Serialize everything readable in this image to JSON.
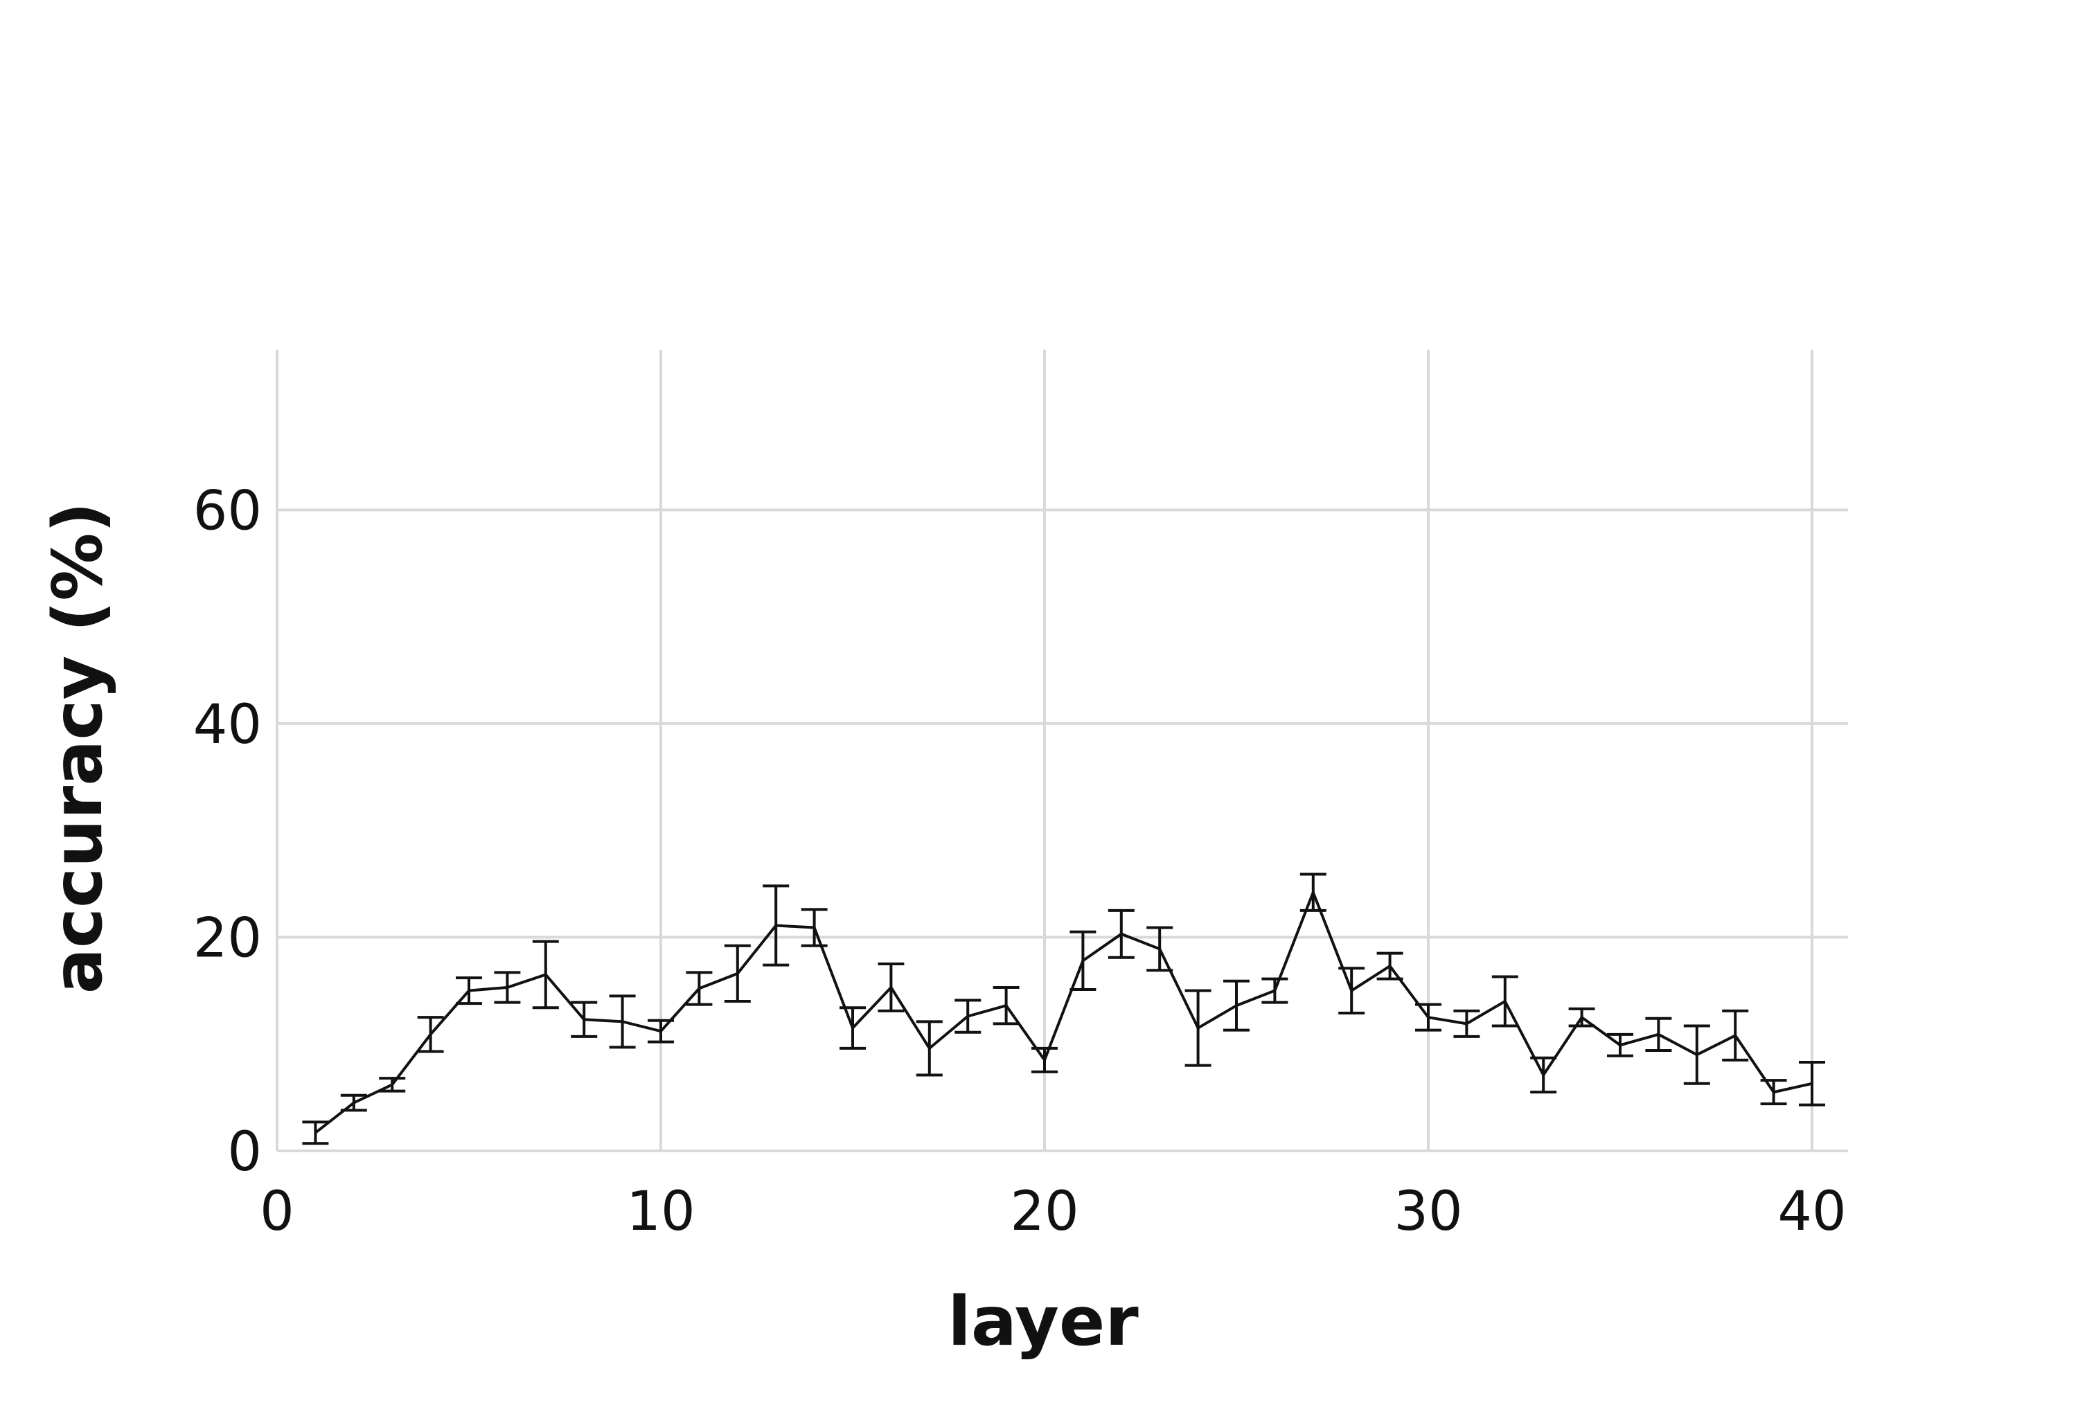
{
  "chart_data": {
    "type": "line",
    "xlabel": "layer",
    "ylabel": "accuracy (%)",
    "xlim": [
      0,
      40
    ],
    "ylim": [
      0,
      75
    ],
    "xticks": [
      0,
      10,
      20,
      30,
      40
    ],
    "yticks": [
      0,
      20,
      40,
      60
    ],
    "grid": true,
    "legend": "none",
    "series": [
      {
        "x": [
          1,
          2,
          3,
          4,
          5,
          6,
          7,
          8,
          9,
          10,
          11,
          12,
          13,
          14,
          15,
          16,
          17,
          18,
          19,
          20,
          21,
          22,
          23,
          24,
          25,
          26,
          27,
          28,
          29,
          30,
          31,
          32,
          33,
          34,
          35,
          36,
          37,
          38,
          39,
          40
        ],
        "y": [
          1.7,
          4.5,
          6.2,
          10.9,
          15.0,
          15.3,
          16.5,
          12.3,
          12.1,
          11.2,
          15.2,
          16.6,
          21.1,
          20.9,
          11.5,
          15.3,
          9.6,
          12.6,
          13.6,
          8.5,
          17.8,
          20.3,
          18.9,
          11.5,
          13.6,
          15.0,
          24.2,
          15.0,
          17.3,
          12.5,
          11.9,
          14.0,
          7.1,
          12.5,
          9.9,
          10.9,
          9.0,
          10.8,
          5.5,
          6.3
        ],
        "err": [
          1.0,
          0.7,
          0.6,
          1.6,
          1.2,
          1.4,
          3.1,
          1.6,
          2.4,
          1.0,
          1.5,
          2.6,
          3.7,
          1.7,
          1.9,
          2.2,
          2.5,
          1.5,
          1.7,
          1.1,
          2.7,
          2.2,
          2.0,
          3.5,
          2.3,
          1.1,
          1.7,
          2.1,
          1.2,
          1.2,
          1.2,
          2.3,
          1.6,
          0.8,
          1.0,
          1.5,
          2.7,
          2.3,
          1.1,
          2.0
        ]
      }
    ]
  }
}
